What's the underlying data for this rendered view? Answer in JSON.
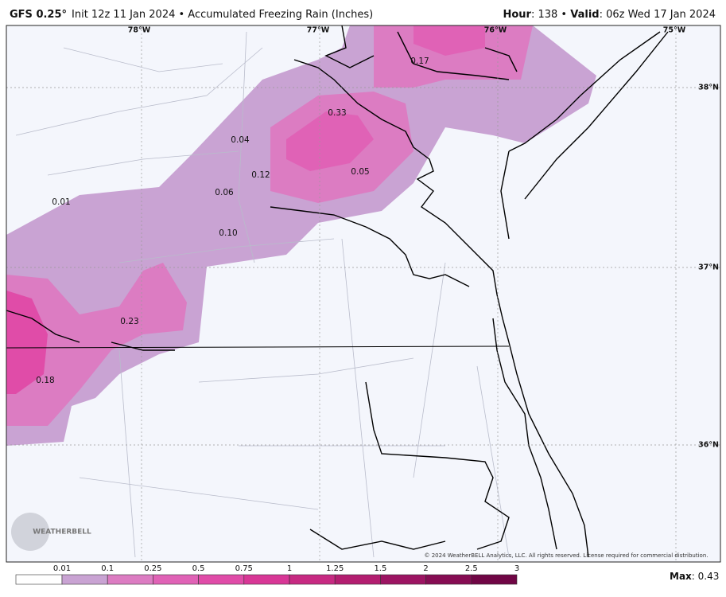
{
  "header": {
    "model": "GFS 0.25°",
    "init": "Init 12z 11 Jan 2024 • Accumulated Freezing Rain (Inches)",
    "hour_label": "Hour",
    "hour": ": 138 • ",
    "valid_label": "Valid",
    "valid": ": 06z Wed 17 Jan 2024"
  },
  "map": {
    "longitude_labels": [
      "78°W",
      "77°W",
      "76°W",
      "75°W"
    ],
    "latitude_labels": [
      "38°N",
      "37°N",
      "36°N"
    ],
    "point_labels": [
      "0.17",
      "0.33",
      "0.04",
      "0.12",
      "0.05",
      "0.06",
      "0.01",
      "0.10",
      "0.23",
      "0.18"
    ],
    "logo": "WEATHERBELL",
    "copyright": "© 2024 WeatherBELL Analytics, LLC. All rights reserved. License required for commercial distribution."
  },
  "legend": {
    "ticks": [
      "0.01",
      "0.1",
      "0.25",
      "0.5",
      "0.75",
      "1",
      "1.25",
      "1.5",
      "2",
      "2.5",
      "3"
    ],
    "colors": [
      "#ffffff",
      "#c9a3d3",
      "#dc7cc2",
      "#e062b6",
      "#e04ca8",
      "#d83796",
      "#c72a82",
      "#b31e70",
      "#9c1462",
      "#860c53",
      "#700645"
    ],
    "max_label": "Max",
    "max": ": 0.43"
  }
}
